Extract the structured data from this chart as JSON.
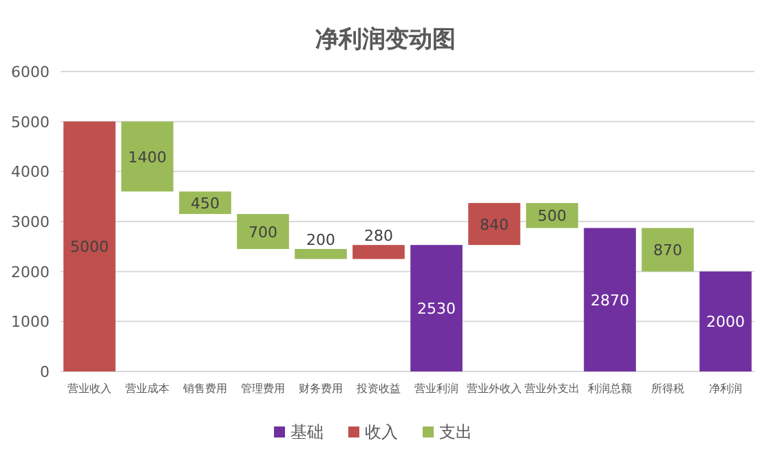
{
  "chart_data": {
    "type": "bar",
    "title": "净利润变动图",
    "categories": [
      "营业收入",
      "营业成本",
      "销售费用",
      "管理费用",
      "财务费用",
      "投资收益",
      "营业利润",
      "营业外收入",
      "营业外支出",
      "利润总额",
      "所得税",
      "净利润"
    ],
    "series": [
      {
        "name": "基础",
        "color": "#7030a0",
        "values": [
          null,
          null,
          null,
          null,
          null,
          null,
          2530,
          null,
          null,
          2870,
          null,
          2000
        ],
        "base": [
          null,
          null,
          null,
          null,
          null,
          null,
          0,
          null,
          null,
          0,
          null,
          0
        ]
      },
      {
        "name": "收入",
        "color": "#c0504d",
        "values": [
          5000,
          null,
          null,
          null,
          null,
          280,
          null,
          840,
          null,
          null,
          null,
          null
        ],
        "base": [
          0,
          null,
          null,
          null,
          null,
          2250,
          null,
          2530,
          null,
          null,
          null,
          null
        ]
      },
      {
        "name": "支出",
        "color": "#9bbb59",
        "values": [
          null,
          1400,
          450,
          700,
          200,
          null,
          null,
          null,
          500,
          null,
          870,
          null
        ],
        "base": [
          null,
          3600,
          3150,
          2450,
          2250,
          null,
          null,
          null,
          2870,
          null,
          2000,
          null
        ]
      }
    ],
    "ylim": [
      0,
      6000
    ],
    "yticks": [
      0,
      1000,
      2000,
      3000,
      4000,
      5000,
      6000
    ],
    "grid": "y",
    "legend": "bottom",
    "data_labels": true
  }
}
